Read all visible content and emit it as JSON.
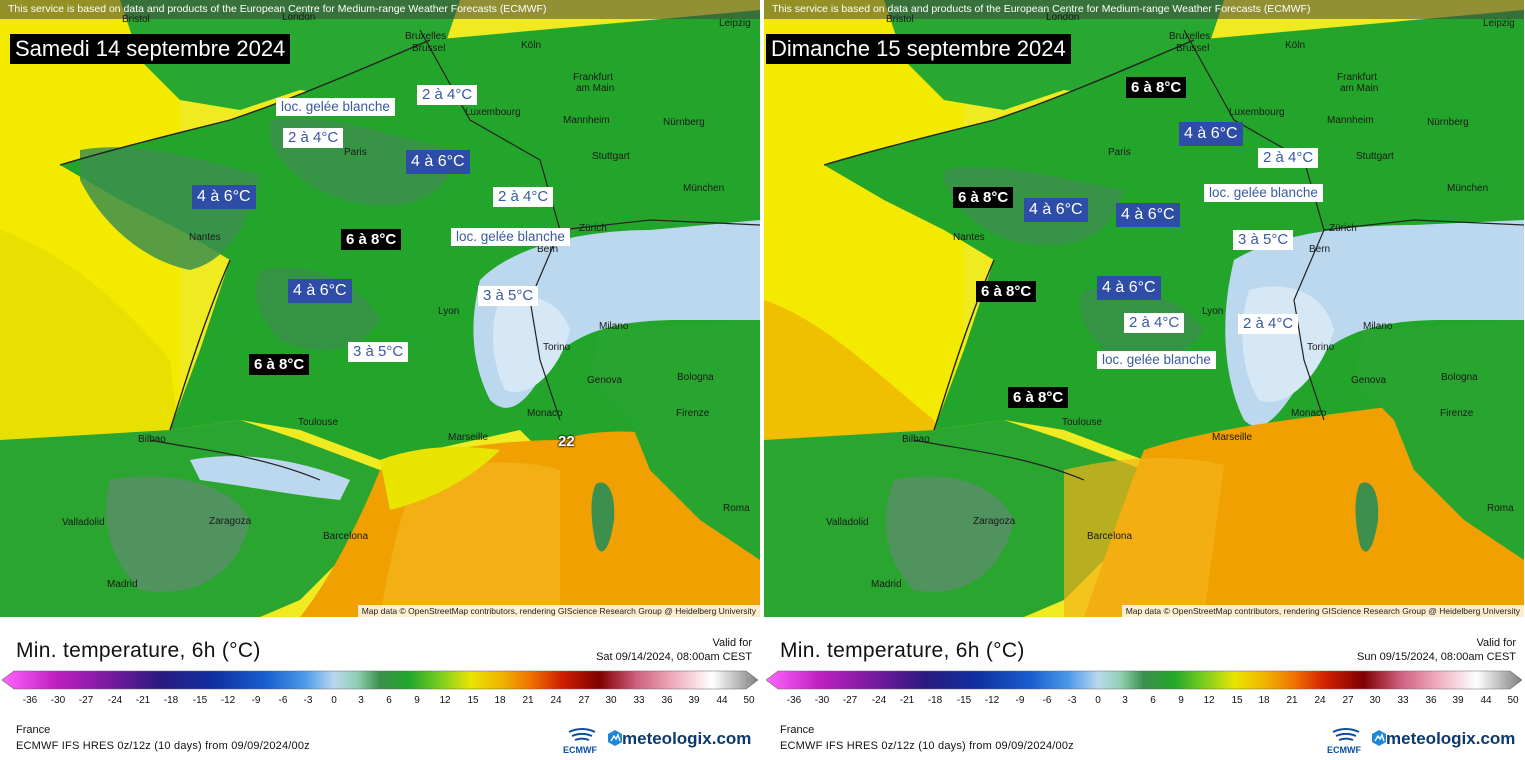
{
  "attribution_top": "This service is based on data and products of the European Centre for Medium-range Weather Forecasts (ECMWF)",
  "attribution_bottom": "Map data © OpenStreetMap contributors, rendering GIScience Research Group @ Heidelberg University",
  "legend": {
    "title": "Min. temperature, 6h (°C)",
    "valid_for_label": "Valid for",
    "scale_ticks": [
      "-36",
      "-30",
      "-27",
      "-24",
      "-21",
      "-18",
      "-15",
      "-12",
      "-9",
      "-6",
      "-3",
      "0",
      "3",
      "6",
      "9",
      "12",
      "15",
      "18",
      "21",
      "24",
      "27",
      "30",
      "33",
      "36",
      "39",
      "44",
      "50"
    ],
    "region": "France",
    "model": "ECMWF IFS HRES 0z/12z (10 days) from 09/09/2024/00z",
    "ecmwf_logo_text": "ECMWF",
    "brand": "meteologix.com"
  },
  "colors": {
    "green": "#22a82a",
    "dark_green": "#3e8a4a",
    "yellow": "#e8e400",
    "orange": "#f0a000",
    "light_blue": "#bcd8ee",
    "sea_yellow": "#f0ea20",
    "label_blue": "#2e4da6"
  },
  "panels": [
    {
      "title": "Samedi 14 septembre 2024",
      "valid_for": "Sat 09/14/2024, 08:00am CEST",
      "cities": [
        "Bristol",
        "London",
        "Bruxelles",
        "Brussel",
        "Köln",
        "Leipzig",
        "Frankfurt",
        "am Main",
        "Luxembourg",
        "Mannheim",
        "Nürnberg",
        "Paris",
        "Stuttgart",
        "München",
        "Nantes",
        "Zürich",
        "Bern",
        "Lyon",
        "Milano",
        "Torino",
        "Genova",
        "Bologna",
        "Monaco",
        "Firenze",
        "Marseille",
        "Toulouse",
        "Bilbao",
        "Valladolid",
        "Zaragoza",
        "Barcelona",
        "Madrid",
        "Roma"
      ],
      "labels": [
        {
          "text": "loc. gelée blanche",
          "style": "frost"
        },
        {
          "text": "2 à 4°C",
          "style": "white"
        },
        {
          "text": "2 à 4°C",
          "style": "white"
        },
        {
          "text": "4 à 6°C",
          "style": "blue"
        },
        {
          "text": "4 à 6°C",
          "style": "blue"
        },
        {
          "text": "2 à 4°C",
          "style": "white"
        },
        {
          "text": "6 à 8°C",
          "style": "black"
        },
        {
          "text": "loc. gelée blanche",
          "style": "frost"
        },
        {
          "text": "4 à 6°C",
          "style": "blue"
        },
        {
          "text": "3 à 5°C",
          "style": "white"
        },
        {
          "text": "6 à 8°C",
          "style": "black"
        },
        {
          "text": "3 à 5°C",
          "style": "white"
        }
      ],
      "big_number": "22"
    },
    {
      "title": "Dimanche 15 septembre 2024",
      "valid_for": "Sun 09/15/2024, 08:00am CEST",
      "cities": [
        "Bristol",
        "London",
        "Bruxelles",
        "Brussel",
        "Köln",
        "Leipzig",
        "Frankfurt",
        "am Main",
        "Luxembourg",
        "Mannheim",
        "Nürnberg",
        "Paris",
        "Stuttgart",
        "München",
        "Nantes",
        "Zürich",
        "Bern",
        "Lyon",
        "Milano",
        "Torino",
        "Genova",
        "Bologna",
        "Monaco",
        "Firenze",
        "Marseille",
        "Toulouse",
        "Bilbao",
        "Valladolid",
        "Zaragoza",
        "Barcelona",
        "Madrid",
        "Roma"
      ],
      "labels": [
        {
          "text": "6 à 8°C",
          "style": "black"
        },
        {
          "text": "4 à 6°C",
          "style": "blue"
        },
        {
          "text": "2 à 4°C",
          "style": "white"
        },
        {
          "text": "loc. gelée blanche",
          "style": "frost"
        },
        {
          "text": "6 à 8°C",
          "style": "black"
        },
        {
          "text": "4 à 6°C",
          "style": "blue"
        },
        {
          "text": "4 à 6°C",
          "style": "blue"
        },
        {
          "text": "3 à 5°C",
          "style": "white"
        },
        {
          "text": "6 à 8°C",
          "style": "black"
        },
        {
          "text": "4 à 6°C",
          "style": "blue"
        },
        {
          "text": "2 à 4°C",
          "style": "white"
        },
        {
          "text": "2 à 4°C",
          "style": "white"
        },
        {
          "text": "loc. gelée blanche",
          "style": "frost"
        },
        {
          "text": "6 à 8°C",
          "style": "black"
        }
      ]
    }
  ]
}
